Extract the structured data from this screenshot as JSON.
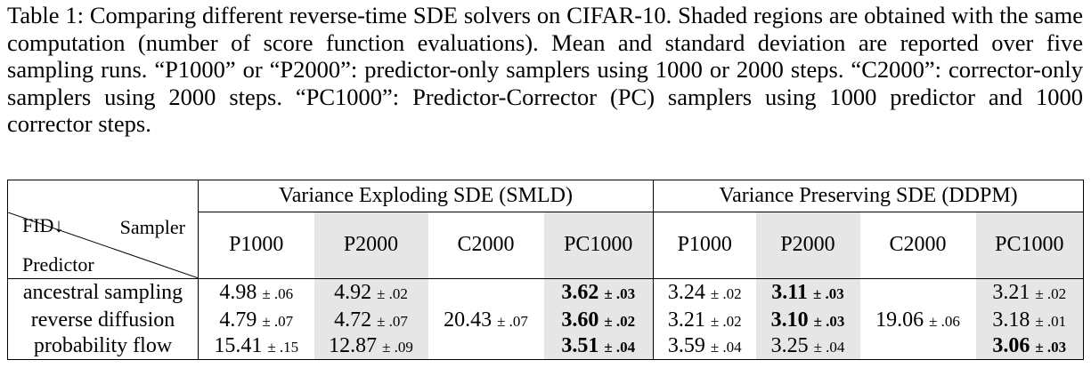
{
  "caption": "Table 1: Comparing different reverse-time SDE solvers on CIFAR-10. Shaded regions are obtained with the same computation (number of score function evaluations). Mean and standard deviation are reported over five sampling runs. “P1000” or “P2000”: predictor-only samplers using 1000 or 2000 steps. “C2000”: corrector-only samplers using 2000 steps. “PC1000”: Predictor-Corrector (PC) samplers using 1000 predictor and 1000 corrector steps.",
  "table": {
    "corner": {
      "metric": "FID↓",
      "columns_label": "Sampler",
      "rows_label": "Predictor"
    },
    "groups": [
      {
        "name": "Variance Exploding SDE (SMLD)",
        "columns": [
          "P1000",
          "P2000",
          "C2000",
          "PC1000"
        ]
      },
      {
        "name": "Variance Preserving SDE (DDPM)",
        "columns": [
          "P1000",
          "P2000",
          "C2000",
          "PC1000"
        ]
      }
    ],
    "shaded_columns": [
      "P2000",
      "PC1000"
    ],
    "rows": [
      {
        "predictor": "ancestral sampling",
        "cells": [
          {
            "mean": "4.98",
            "std": "± .06",
            "bold": false
          },
          {
            "mean": "4.92",
            "std": "± .02",
            "bold": false
          },
          null,
          {
            "mean": "3.62",
            "std": "± .03",
            "bold": true
          },
          {
            "mean": "3.24",
            "std": "± .02",
            "bold": false
          },
          {
            "mean": "3.11",
            "std": "± .03",
            "bold": true
          },
          null,
          {
            "mean": "3.21",
            "std": "± .02",
            "bold": false
          }
        ]
      },
      {
        "predictor": "reverse diffusion",
        "cells": [
          {
            "mean": "4.79",
            "std": "± .07",
            "bold": false
          },
          {
            "mean": "4.72",
            "std": "± .07",
            "bold": false
          },
          {
            "mean": "20.43",
            "std": "± .07",
            "bold": false
          },
          {
            "mean": "3.60",
            "std": "± .02",
            "bold": true
          },
          {
            "mean": "3.21",
            "std": "± .02",
            "bold": false
          },
          {
            "mean": "3.10",
            "std": "± .03",
            "bold": true
          },
          {
            "mean": "19.06",
            "std": "± .06",
            "bold": false
          },
          {
            "mean": "3.18",
            "std": "± .01",
            "bold": false
          }
        ]
      },
      {
        "predictor": "probability flow",
        "cells": [
          {
            "mean": "15.41",
            "std": "± .15",
            "bold": false
          },
          {
            "mean": "12.87",
            "std": "± .09",
            "bold": false
          },
          null,
          {
            "mean": "3.51",
            "std": "± .04",
            "bold": true
          },
          {
            "mean": "3.59",
            "std": "± .04",
            "bold": false
          },
          {
            "mean": "3.25",
            "std": "± .04",
            "bold": false
          },
          null,
          {
            "mean": "3.06",
            "std": "± .03",
            "bold": true
          }
        ]
      }
    ]
  }
}
